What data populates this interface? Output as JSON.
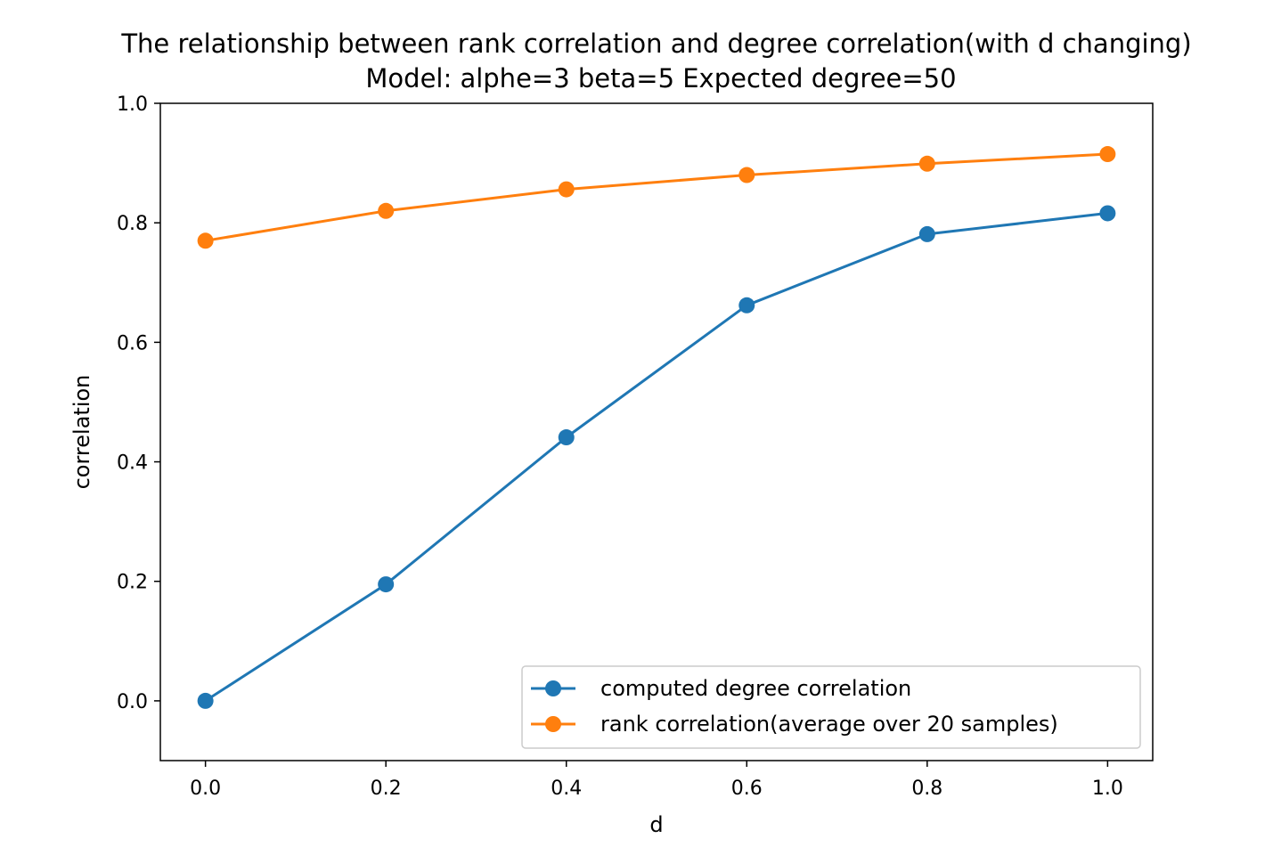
{
  "chart_data": {
    "type": "line",
    "title": "The relationship between rank correlation and degree correlation(with d changing)",
    "subtitle": "Model: alphe=3 beta=5 Expected degree=50",
    "xlabel": "d",
    "ylabel": "correlation",
    "xlim": [
      -0.05,
      1.05
    ],
    "ylim": [
      -0.1,
      1.0
    ],
    "x_ticks": [
      "0.0",
      "0.2",
      "0.4",
      "0.6",
      "0.8",
      "1.0"
    ],
    "y_ticks": [
      "0.0",
      "0.2",
      "0.4",
      "0.6",
      "0.8",
      "1.0"
    ],
    "x": [
      0.0,
      0.2,
      0.4,
      0.6,
      0.8,
      1.0
    ],
    "series": [
      {
        "name": "computed degree correlation",
        "color": "#1f77b4",
        "values": [
          0.0,
          0.195,
          0.441,
          0.662,
          0.781,
          0.816
        ],
        "marker": "circle"
      },
      {
        "name": "rank correlation(average over 20 samples)",
        "color": "#ff7f0e",
        "values": [
          0.77,
          0.82,
          0.856,
          0.88,
          0.899,
          0.915
        ],
        "marker": "circle"
      }
    ],
    "grid": false,
    "legend_position": "lower-right"
  }
}
